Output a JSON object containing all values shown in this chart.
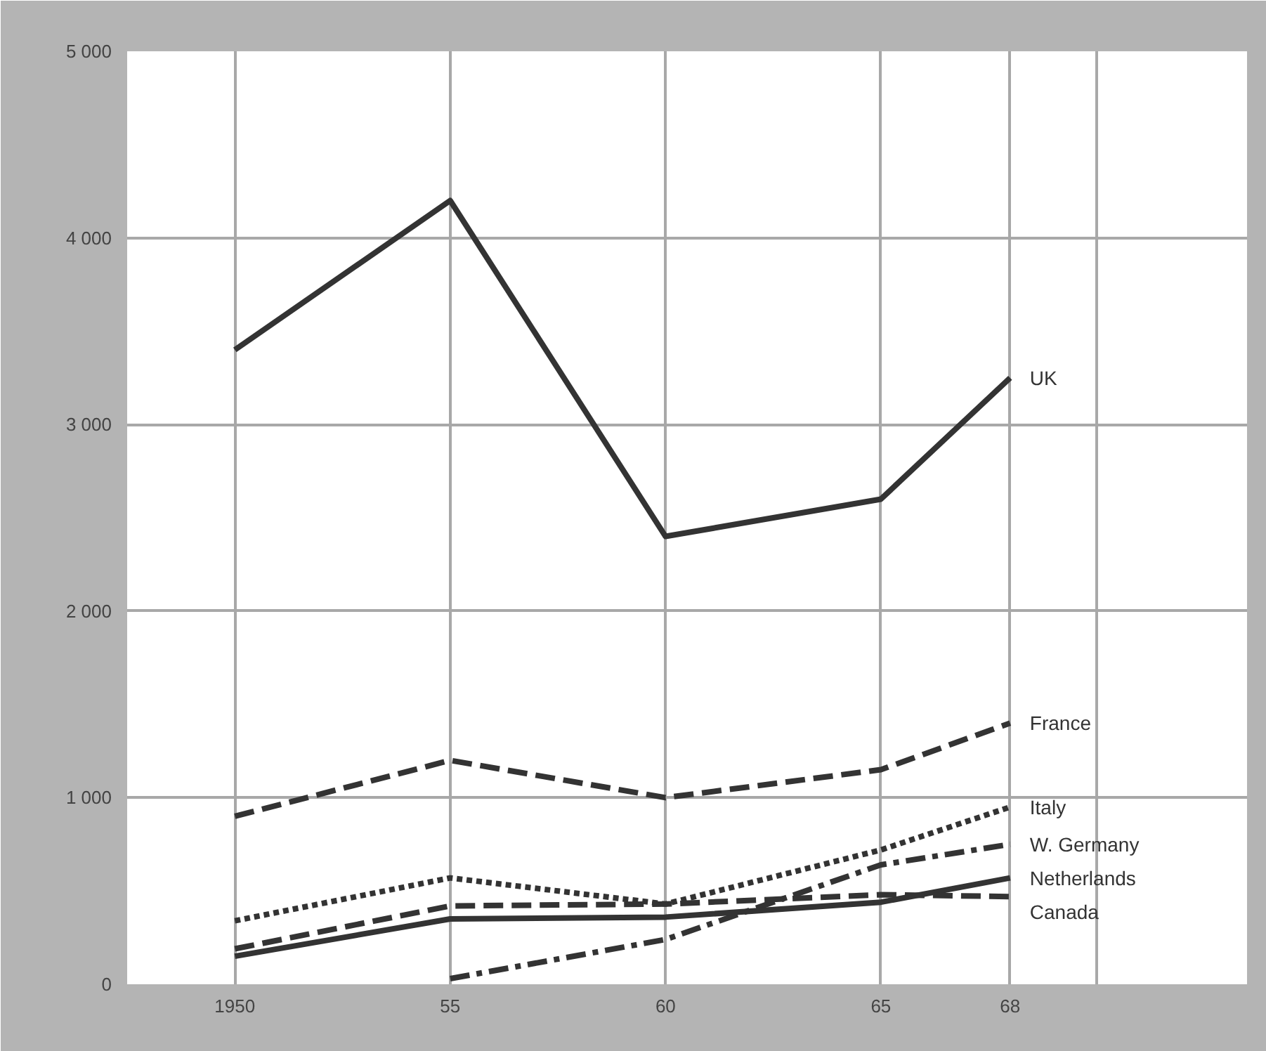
{
  "chart_data": {
    "type": "line",
    "x": [
      1950,
      1955,
      1960,
      1965,
      1968
    ],
    "series": [
      {
        "name": "UK",
        "color": "#333333",
        "line_style": "solid",
        "values": [
          3400,
          4200,
          2400,
          2600,
          3250
        ]
      },
      {
        "name": "France",
        "color": "#333333",
        "line_style": "dashed",
        "values": [
          900,
          1200,
          1000,
          1150,
          1400
        ]
      },
      {
        "name": "Italy",
        "color": "#333333",
        "line_style": "dotted",
        "values": [
          340,
          570,
          430,
          720,
          950
        ]
      },
      {
        "name": "W. Germany",
        "color": "#333333",
        "line_style": "dashdot",
        "values": [
          null,
          30,
          240,
          640,
          750
        ]
      },
      {
        "name": "Netherlands",
        "color": "#333333",
        "line_style": "solid",
        "values": [
          150,
          350,
          360,
          440,
          570
        ]
      },
      {
        "name": "Canada",
        "color": "#333333",
        "line_style": "dashed",
        "values": [
          190,
          420,
          430,
          480,
          470
        ]
      }
    ],
    "xlim": [
      1947.5,
      1973.5
    ],
    "ylim": [
      0,
      5000
    ],
    "xticks": [
      {
        "value": 1950,
        "label": "1950"
      },
      {
        "value": 1955,
        "label": "55"
      },
      {
        "value": 1960,
        "label": "60"
      },
      {
        "value": 1965,
        "label": "65"
      },
      {
        "value": 1968,
        "label": "68"
      },
      {
        "value": 1970,
        "label": null
      }
    ],
    "yticks": [
      0,
      {
        "value": 1000,
        "label": "1 000"
      },
      {
        "value": 2000,
        "label": "2 000"
      },
      {
        "value": 3000,
        "label": "3 000"
      },
      {
        "value": 4000,
        "label": "4 000"
      },
      {
        "value": 5000,
        "label": "5 000"
      }
    ],
    "grid": true,
    "marker": "none"
  }
}
